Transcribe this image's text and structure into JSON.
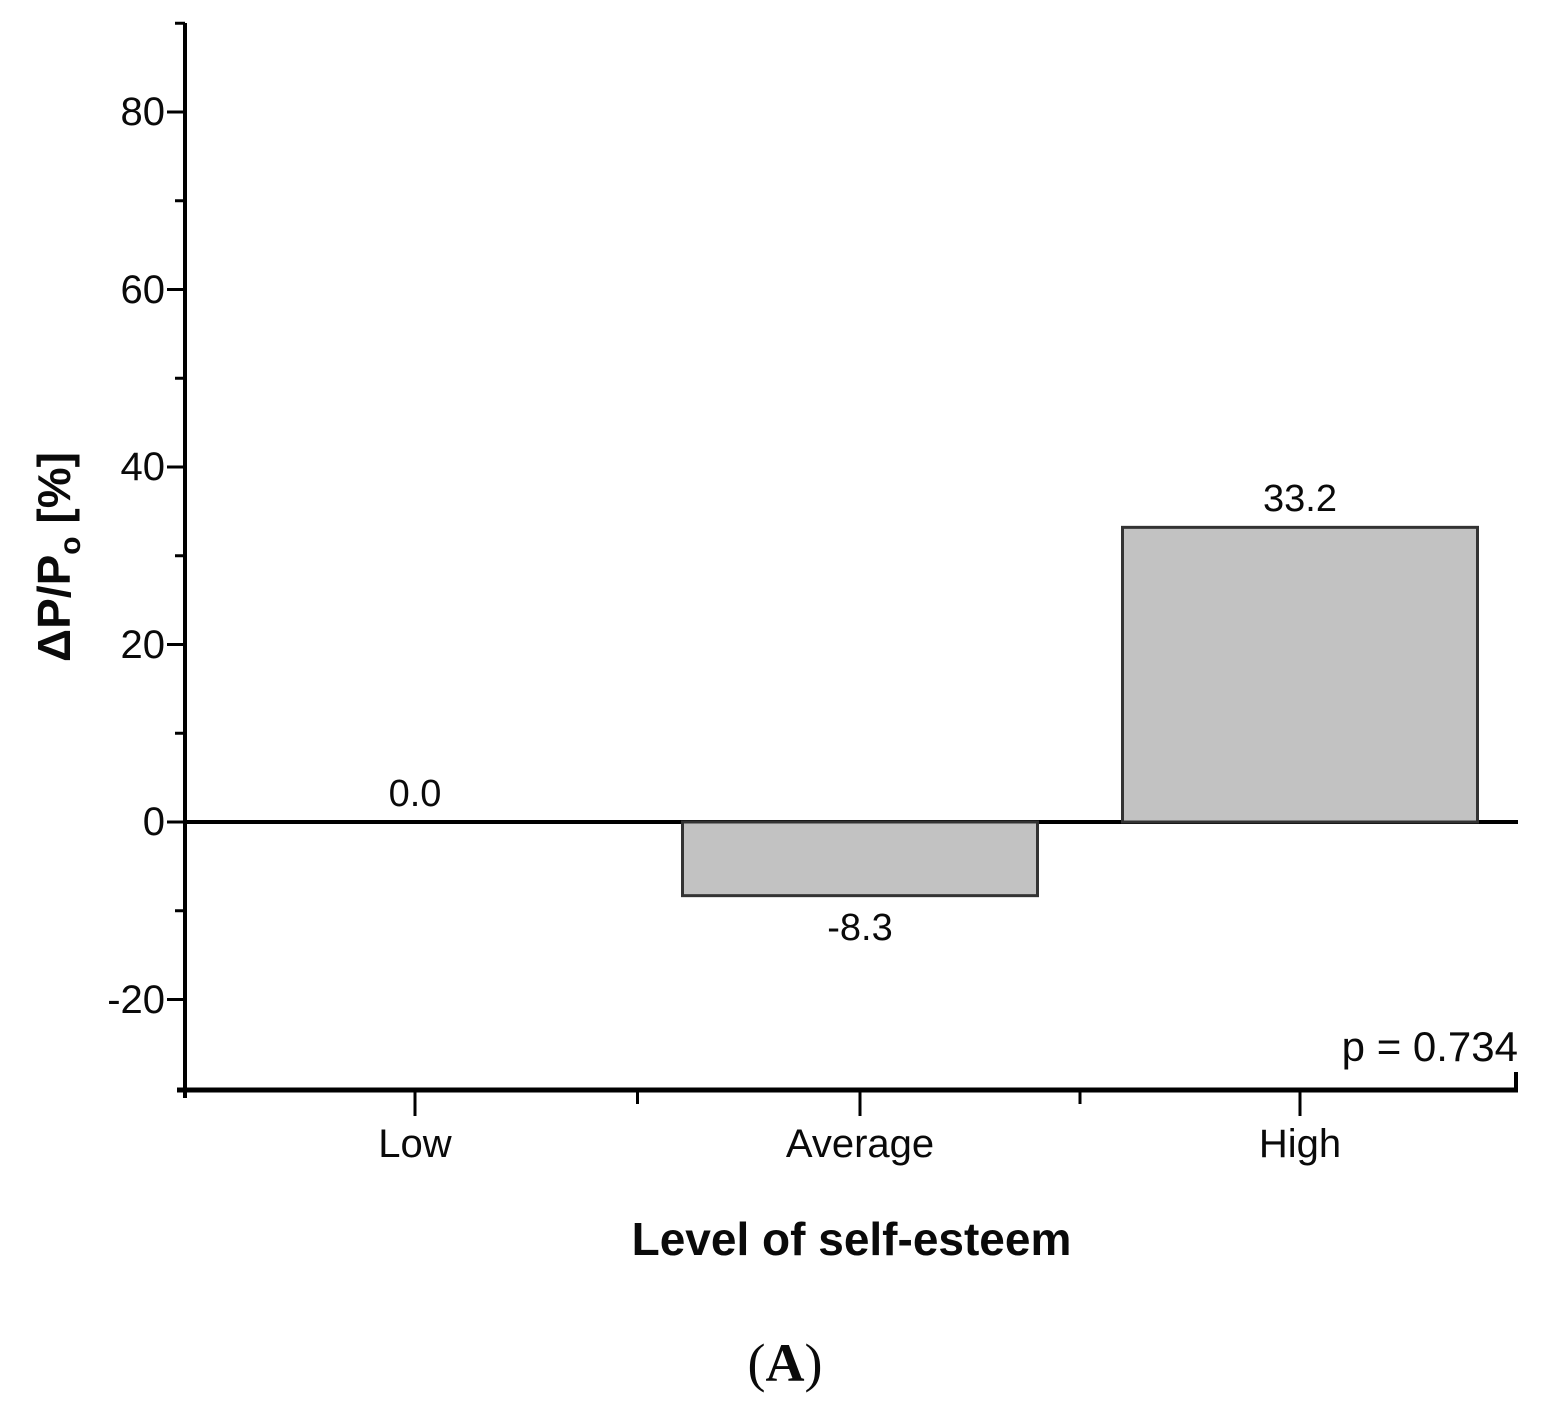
{
  "caption": {
    "open": "(",
    "letter": "A",
    "close": ")"
  },
  "chart_data": {
    "type": "bar",
    "categories": [
      "Low",
      "Average",
      "High"
    ],
    "values": [
      0.0,
      -8.3,
      33.2
    ],
    "value_labels": [
      "0.0",
      "-8.3",
      "33.2"
    ],
    "xlabel": "Level of self-esteem",
    "ylabel": "ΔP/Po [%]",
    "ylabel_main": "ΔP/P",
    "ylabel_sub": "o",
    "ylabel_unit": " [%]",
    "y_ticks": [
      80,
      60,
      40,
      20,
      0,
      -20
    ],
    "y_tick_labels": [
      "80",
      "60",
      "40",
      "20",
      "0",
      "-20"
    ],
    "y_minor_ticks": [
      90,
      70,
      50,
      30,
      10,
      -10
    ],
    "ylim": [
      -31,
      90
    ],
    "annotation": "p = 0.734",
    "grid": false,
    "legend": "none",
    "bar_fill": "#c2c2c2",
    "bar_border": "#333333",
    "axis_color": "#000000",
    "text_color": "#0a0a0a"
  }
}
